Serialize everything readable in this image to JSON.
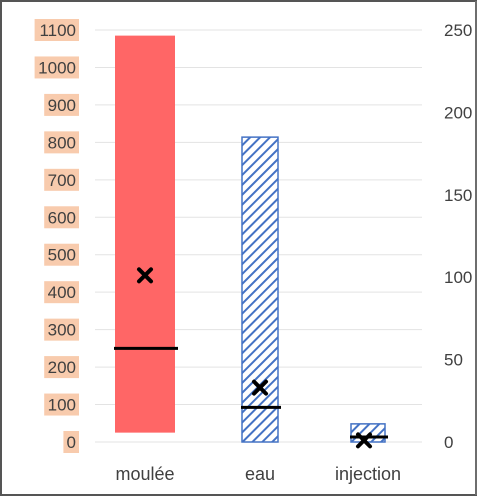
{
  "chart_data": {
    "type": "bar",
    "categories": [
      "moulée",
      "eau",
      "injection"
    ],
    "left_axis": {
      "range": [
        0,
        1100
      ],
      "ticks": [
        "0",
        "100",
        "200",
        "300",
        "400",
        "500",
        "600",
        "700",
        "800",
        "900",
        "1000",
        "1100"
      ],
      "tick_bg": "#f8cbad"
    },
    "right_axis": {
      "range": [
        0,
        250
      ],
      "ticks": [
        "0",
        "50",
        "100",
        "150",
        "200",
        "250"
      ]
    },
    "series": [
      {
        "category": "moulée",
        "axis": "left",
        "low": 25,
        "high": 1085,
        "median": 250,
        "mean": 445,
        "fill": "#ff6666",
        "pattern": "solid"
      },
      {
        "category": "eau",
        "axis": "right",
        "low": 0,
        "high": 185,
        "median": 21,
        "mean": 33,
        "fill": "#4472c4",
        "pattern": "diagonal-hatch"
      },
      {
        "category": "injection",
        "axis": "right",
        "low": 0,
        "high": 11,
        "median": 3,
        "mean": 1,
        "fill": "#4472c4",
        "pattern": "diagonal-hatch"
      }
    ],
    "grid": true,
    "legend": "none"
  }
}
